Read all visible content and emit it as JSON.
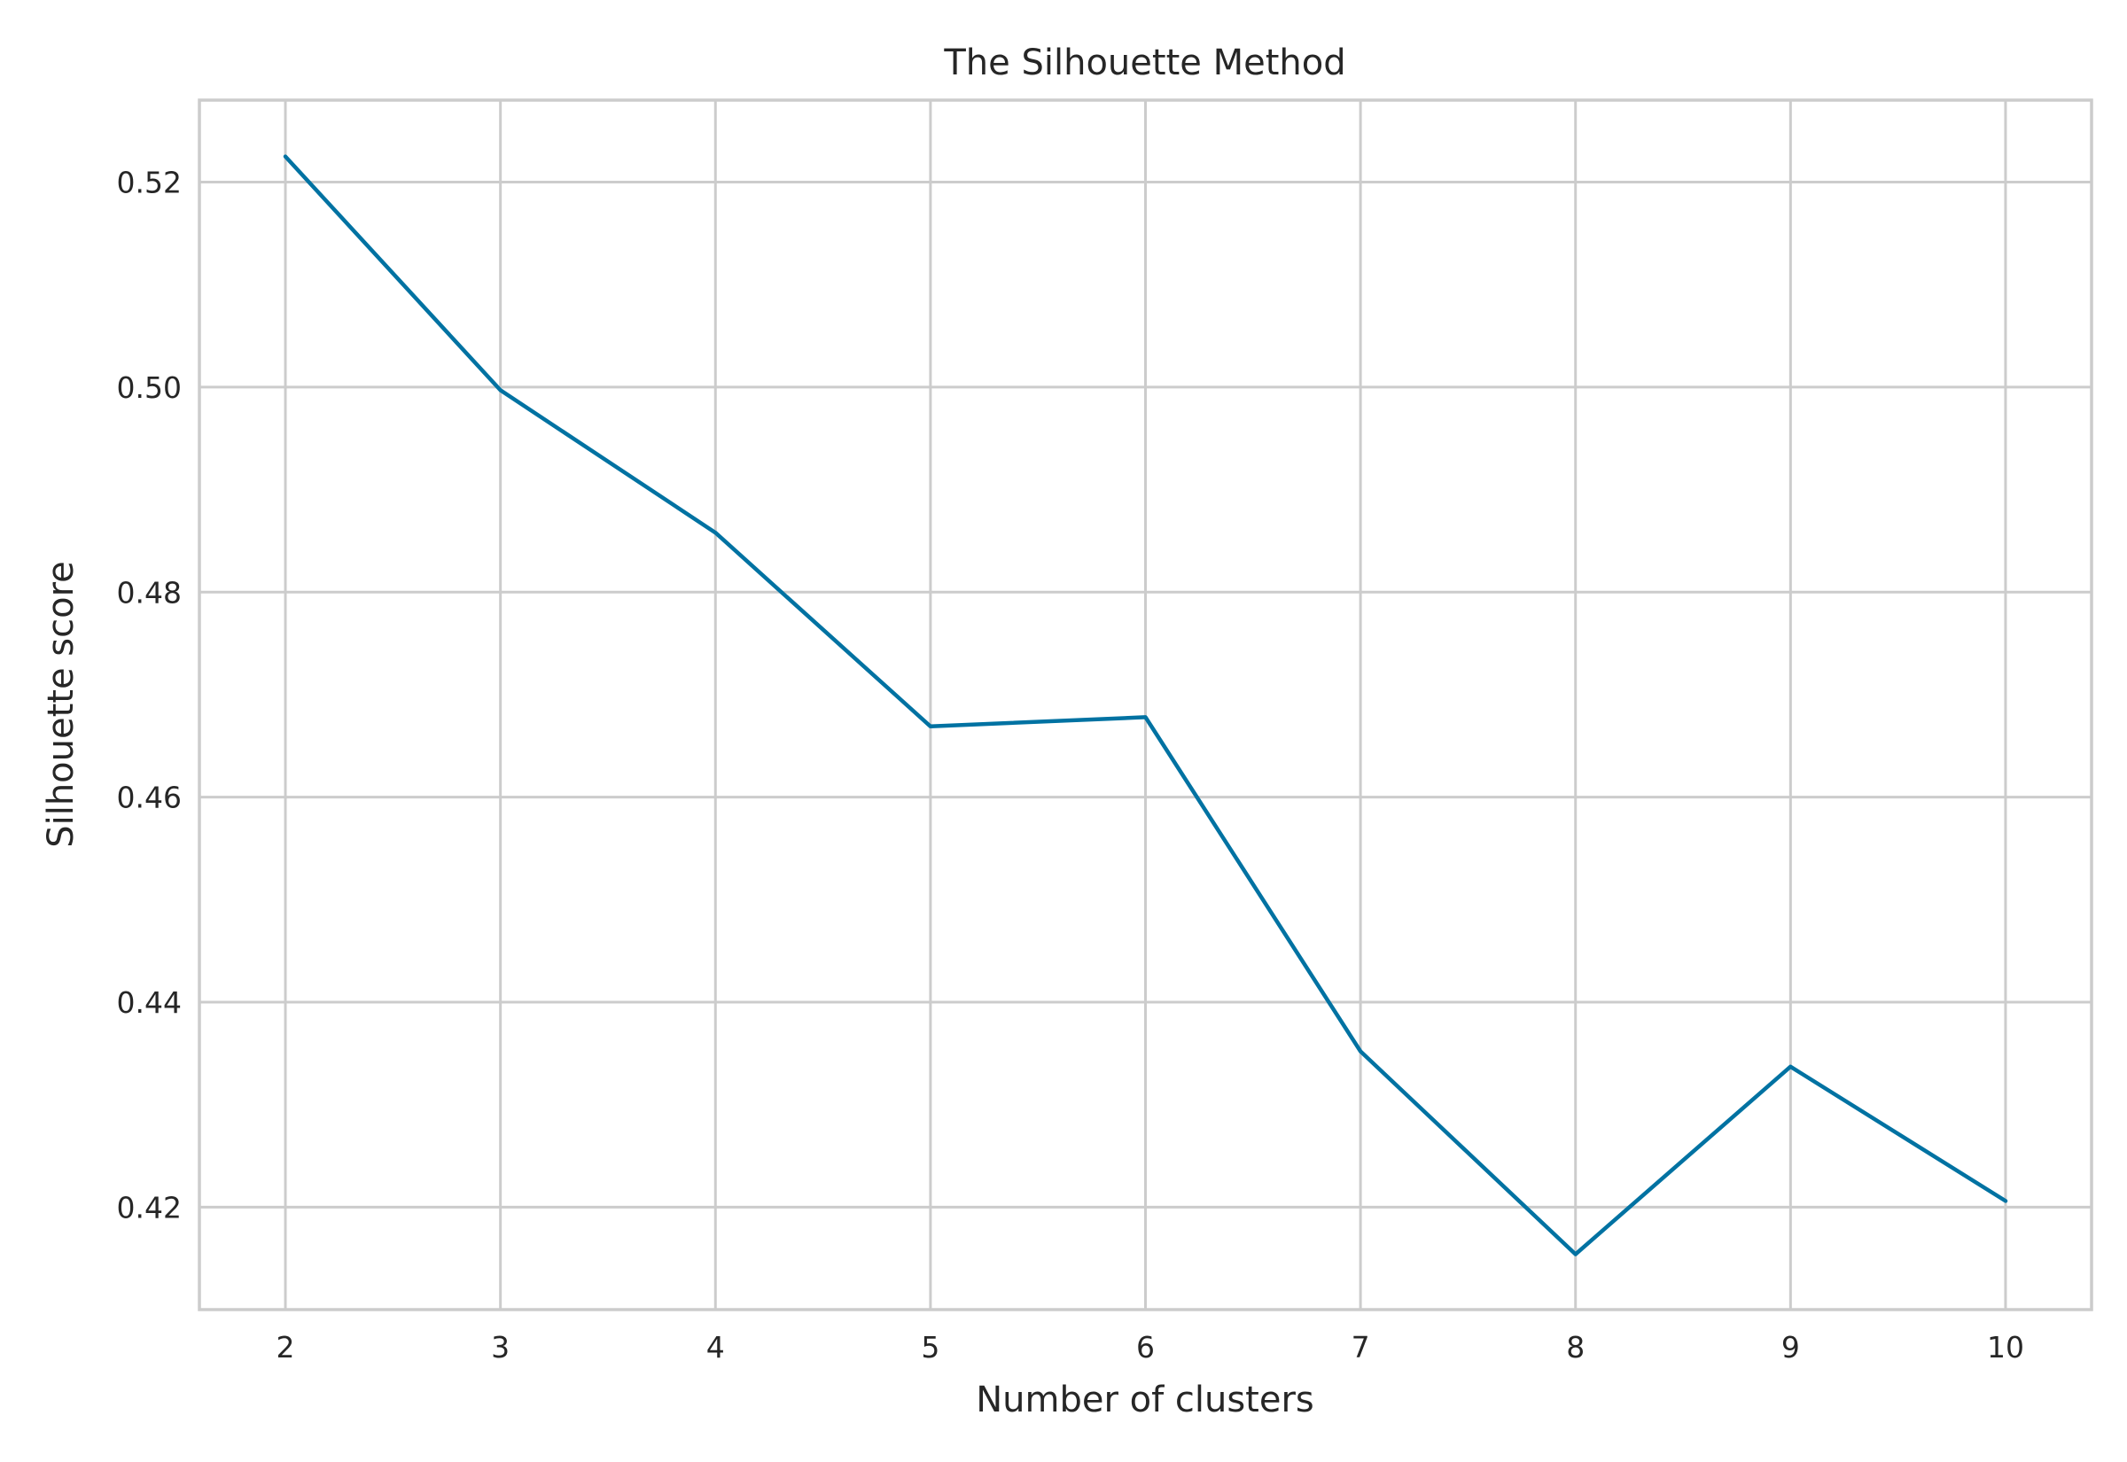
{
  "chart_data": {
    "type": "line",
    "title": "The Silhouette Method",
    "xlabel": "Number of clusters",
    "ylabel": "Silhouette score",
    "x": [
      2,
      3,
      4,
      5,
      6,
      7,
      8,
      9,
      10
    ],
    "series": [
      {
        "values": [
          0.5225,
          0.4997,
          0.4858,
          0.4669,
          0.4678,
          0.4352,
          0.4154,
          0.4337,
          0.4206
        ],
        "color": "#0072a2"
      }
    ],
    "xlim": [
      1.6,
      10.4
    ],
    "ylim": [
      0.41,
      0.528
    ],
    "xticks": [
      2,
      3,
      4,
      5,
      6,
      7,
      8,
      9,
      10
    ],
    "xtick_labels": [
      "2",
      "3",
      "4",
      "5",
      "6",
      "7",
      "8",
      "9",
      "10"
    ],
    "yticks": [
      0.42,
      0.44,
      0.46,
      0.48,
      0.5,
      0.52
    ],
    "ytick_labels": [
      "0.42",
      "0.44",
      "0.46",
      "0.48",
      "0.50",
      "0.52"
    ],
    "grid": true,
    "legend": "none"
  }
}
